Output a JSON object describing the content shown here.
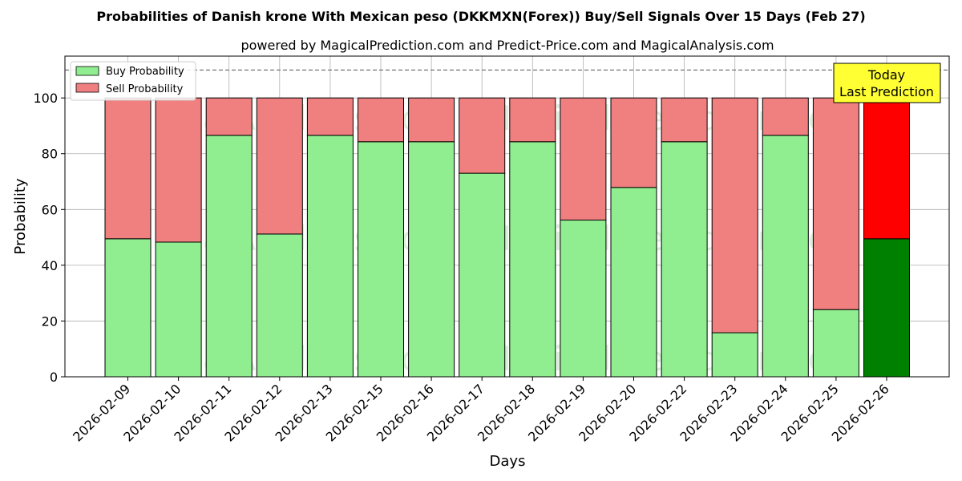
{
  "chart_data": {
    "type": "bar",
    "stacked": true,
    "title": "Probabilities of Danish krone With Mexican peso (DKKMXN(Forex)) Buy/Sell Signals Over 15 Days (Feb 27)",
    "subtitle": "powered by MagicalPrediction.com and Predict-Price.com and MagicalAnalysis.com",
    "xlabel": "Days",
    "ylabel": "Probability",
    "ylim": [
      0,
      115
    ],
    "yticks": [
      0,
      20,
      40,
      60,
      80,
      100
    ],
    "reference_line": 110,
    "grid": true,
    "legend_position": "top-left",
    "categories": [
      "2026-02-09",
      "2026-02-10",
      "2026-02-11",
      "2026-02-12",
      "2026-02-13",
      "2026-02-15",
      "2026-02-16",
      "2026-02-17",
      "2026-02-18",
      "2026-02-19",
      "2026-02-20",
      "2026-02-22",
      "2026-02-23",
      "2026-02-24",
      "2026-02-25",
      "2026-02-26"
    ],
    "series": [
      {
        "name": "Buy Probability",
        "color": "#90ee90",
        "highlight_color": "#008000",
        "values": [
          49.5,
          48.3,
          86.6,
          51.2,
          86.6,
          84.3,
          84.3,
          73.0,
          84.3,
          56.2,
          67.9,
          84.3,
          15.8,
          86.6,
          24.1,
          49.5
        ]
      },
      {
        "name": "Sell Probability",
        "color": "#f08080",
        "highlight_color": "#ff0000",
        "values": [
          50.5,
          51.7,
          13.4,
          48.8,
          13.4,
          15.7,
          15.7,
          27.0,
          15.7,
          43.8,
          32.1,
          15.7,
          84.2,
          13.4,
          75.9,
          50.5
        ]
      }
    ],
    "annotation": {
      "lines": [
        "Today",
        "Last Prediction"
      ],
      "target_category": "2026-02-26",
      "color": "#ffff33"
    },
    "watermarks": [
      "MagicalAnalysis.com",
      "MagicalPrediction.com"
    ]
  }
}
